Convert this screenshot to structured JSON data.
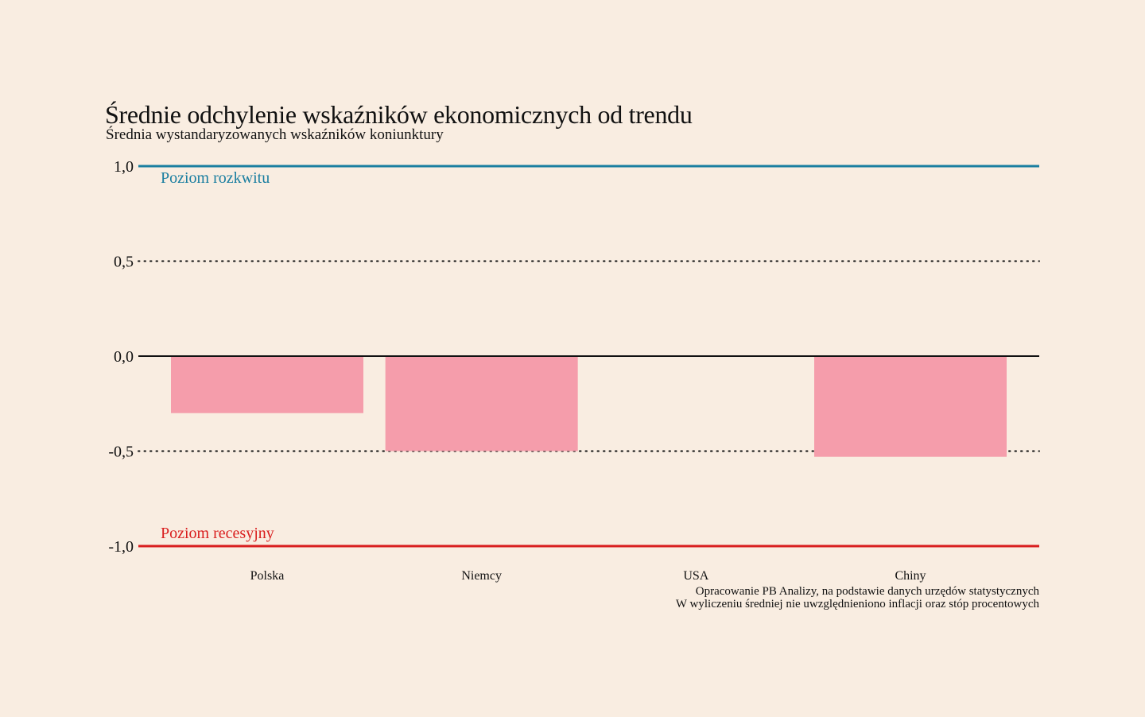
{
  "title": "Średnie odchylenie wskaźników ekonomicznych od trendu",
  "subtitle": "Średnia wystandaryzowanych wskaźników koniunktury",
  "footnote": {
    "line1": "Opracowanie PB Analizy, na podstawie danych urzędów statystycznych",
    "line2": "W wyliczeniu średniej nie uwzględnieniono inflacji oraz stóp procentowych"
  },
  "colors": {
    "background": "#f9ede1",
    "bar": "#f59dab",
    "boom_line": "#1a7ea0",
    "recession_line": "#d91e1e",
    "zero_line": "#111111"
  },
  "chart_data": {
    "type": "bar",
    "title": "Średnie odchylenie wskaźników ekonomicznych od trendu",
    "subtitle": "Średnia wystandaryzowanych wskaźników koniunktury",
    "categories": [
      "Polska",
      "Niemcy",
      "USA",
      "Chiny"
    ],
    "values": [
      -0.3,
      -0.5,
      0.0,
      -0.53
    ],
    "ylim": [
      -1.0,
      1.0
    ],
    "yticks": [
      {
        "value": 1.0,
        "label": "1,0",
        "style": "boom"
      },
      {
        "value": 0.5,
        "label": "0,5",
        "style": "dotted"
      },
      {
        "value": 0.0,
        "label": "0,0",
        "style": "solid"
      },
      {
        "value": -0.5,
        "label": "-0,5",
        "style": "dotted"
      },
      {
        "value": -1.0,
        "label": "-1,0",
        "style": "recession"
      }
    ],
    "reference_lines": [
      {
        "value": 1.0,
        "label": "Poziom rozkwitu",
        "color": "#1a7ea0"
      },
      {
        "value": -1.0,
        "label": "Poziom recesyjny",
        "color": "#d91e1e"
      }
    ],
    "grid": true
  }
}
